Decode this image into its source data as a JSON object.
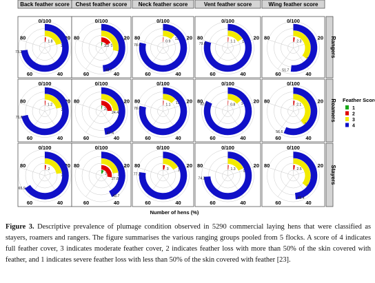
{
  "figure": {
    "columns": [
      "Back  feather score",
      "Chest feather score",
      "Neck feather score",
      "Vent  feather score",
      "Wing  feather score"
    ],
    "rows": [
      "Rangers",
      "Roamers",
      "Stayers"
    ],
    "tick_labels": {
      "top": "0/100",
      "right": "20",
      "bottom_right": "40",
      "bottom_left": "60",
      "left": "80"
    },
    "xlabel": "Number of hens (%)",
    "legend": {
      "title": "Feather Score",
      "items": [
        {
          "label": "1",
          "color": "#1aa81a"
        },
        {
          "label": "2",
          "color": "#e00000"
        },
        {
          "label": "3",
          "color": "#f2ea00"
        },
        {
          "label": "4",
          "color": "#1010c8"
        }
      ]
    }
  },
  "chart_data": {
    "type": "radial bar",
    "xlabel": "Number of hens (%)",
    "categories": [
      "1",
      "2",
      "3",
      "4"
    ],
    "colors": {
      "1": "#1aa81a",
      "2": "#e00000",
      "3": "#f2ea00",
      "4": "#1010c8"
    },
    "panels": [
      {
        "row": "Rangers",
        "column": "Back  feather score",
        "values": {
          "1": 0,
          "2": 1.8,
          "3": 20.9,
          "4": 73.2
        },
        "labels": {
          "2": "1.8",
          "3": "20.9",
          "4": "73.2"
        }
      },
      {
        "row": "Rangers",
        "column": "Chest feather score",
        "values": {
          "1": 3.2,
          "2": 16.9,
          "3": 28.1,
          "4": 48.7
        },
        "labels": {
          "1": "3.2",
          "2": "16.9",
          "3": "28.1",
          "4": "48.7"
        }
      },
      {
        "row": "Rangers",
        "column": "Neck feather score",
        "values": {
          "1": 0,
          "2": 0.9,
          "3": 11.7,
          "4": 78.6
        },
        "labels": {
          "2": "0.9",
          "3": "11.7",
          "4": "78.6"
        }
      },
      {
        "row": "Rangers",
        "column": "Vent  feather score",
        "values": {
          "1": 0,
          "2": 1.1,
          "3": 16,
          "4": 79.6
        },
        "labels": {
          "2": "1.1",
          "3": "16",
          "4": "79.6"
        }
      },
      {
        "row": "Rangers",
        "column": "Wing  feather score",
        "values": {
          "1": 0,
          "2": 2.3,
          "3": 36.1,
          "4": 51.7
        },
        "labels": {
          "2": "2.3",
          "3": "36.1",
          "4": "51.7"
        }
      },
      {
        "row": "Roamers",
        "column": "Back  feather score",
        "values": {
          "1": 0,
          "2": 1.2,
          "3": 21.5,
          "4": 71.6
        },
        "labels": {
          "2": "1.2",
          "3": "21.5",
          "4": "71.6"
        }
      },
      {
        "row": "Roamers",
        "column": "Chest feather score",
        "values": {
          "1": 2.8,
          "2": 24.4,
          "3": 24.4,
          "4": 47.4
        },
        "labels": {
          "1": "2.8",
          "2": "24.4",
          "3": "24.4",
          "4": "47.4"
        }
      },
      {
        "row": "Roamers",
        "column": "Neck feather score",
        "values": {
          "1": 0,
          "2": 1.1,
          "3": 12.9,
          "4": 78.6
        },
        "labels": {
          "2": "1.1",
          "3": "12.9",
          "4": "78.6"
        }
      },
      {
        "row": "Roamers",
        "column": "Vent  feather score",
        "values": {
          "1": 0,
          "2": 0.8,
          "3": 14,
          "4": 82.1
        },
        "labels": {
          "2": "0.8",
          "3": "14",
          "4": "82.1"
        }
      },
      {
        "row": "Roamers",
        "column": "Wing  feather score",
        "values": {
          "1": 0,
          "2": 2.1,
          "3": 39.3,
          "4": 56.6
        },
        "labels": {
          "2": "2.1",
          "3": "39.3",
          "4": "56.6"
        }
      },
      {
        "row": "Stayers",
        "column": "Back  feather score",
        "values": {
          "1": 0,
          "2": 2,
          "3": 22.7,
          "4": 65.9
        },
        "labels": {
          "2": "2",
          "3": "22.7",
          "4": "65.9"
        }
      },
      {
        "row": "Stayers",
        "column": "Chest feather score",
        "values": {
          "1": 7.3,
          "2": 27.8,
          "3": 22.1,
          "4": 42.7
        },
        "labels": {
          "1": "7.3",
          "2": "27.8",
          "3": "22.1",
          "4": "42.7"
        }
      },
      {
        "row": "Stayers",
        "column": "Neck feather score",
        "values": {
          "1": 0,
          "2": 3,
          "3": 16.7,
          "4": 77.3
        },
        "labels": {
          "2": "3",
          "3": "16.7",
          "4": "77.3"
        }
      },
      {
        "row": "Stayers",
        "column": "Vent  feather score",
        "values": {
          "1": 0,
          "2": 1.3,
          "3": 18,
          "4": 74.2
        },
        "labels": {
          "2": "1.3",
          "3": "18",
          "4": "74.2"
        }
      },
      {
        "row": "Stayers",
        "column": "Wing  feather score",
        "values": {
          "1": 0,
          "2": 2.5,
          "3": 36,
          "4": 48.4
        },
        "labels": {
          "2": "2.5",
          "3": "36",
          "4": "48.4"
        }
      }
    ]
  },
  "caption": {
    "label": "Figure 3.",
    "text": "Descriptive prevalence of plumage condition observed in 5290 commercial laying hens that were classified as stayers, roamers and rangers. The figure summarises the various ranging groups pooled from 5 flocks.  A score of 4 indicates full feather cover, 3 indicates moderate feather cover, 2 indicates feather loss with more than 50% of the skin covered with feather, and 1 indicates severe feather loss with less than 50% of the skin covered with feather [23]."
  }
}
